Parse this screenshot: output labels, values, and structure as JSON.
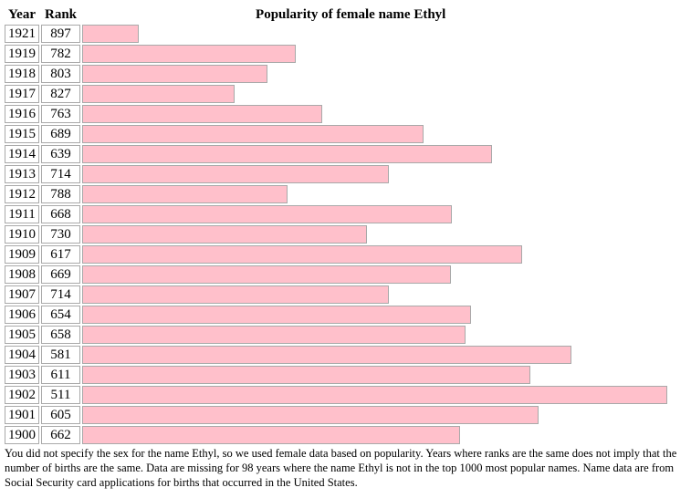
{
  "chart_data": {
    "type": "bar",
    "orientation": "horizontal",
    "title": "Popularity of female name Ethyl",
    "columns": [
      "Year",
      "Rank"
    ],
    "categories": [
      "1921",
      "1919",
      "1918",
      "1917",
      "1916",
      "1915",
      "1914",
      "1913",
      "1912",
      "1911",
      "1910",
      "1909",
      "1908",
      "1907",
      "1906",
      "1905",
      "1904",
      "1903",
      "1902",
      "1901",
      "1900"
    ],
    "values": [
      897,
      782,
      803,
      827,
      763,
      689,
      639,
      714,
      788,
      668,
      730,
      617,
      669,
      714,
      654,
      658,
      581,
      611,
      511,
      605,
      662
    ],
    "bar_color": "#ffc0cb",
    "bar_border": "#a9a9a9"
  },
  "footnote": "You did not specify the sex for the name Ethyl, so we used female data based on popularity. Years where ranks are the same does not imply that the number of births are the same. Data are missing for 98 years where the name Ethyl is not in the top 1000 most popular names. Name data are from Social Security card applications for births that occurred in the United States."
}
